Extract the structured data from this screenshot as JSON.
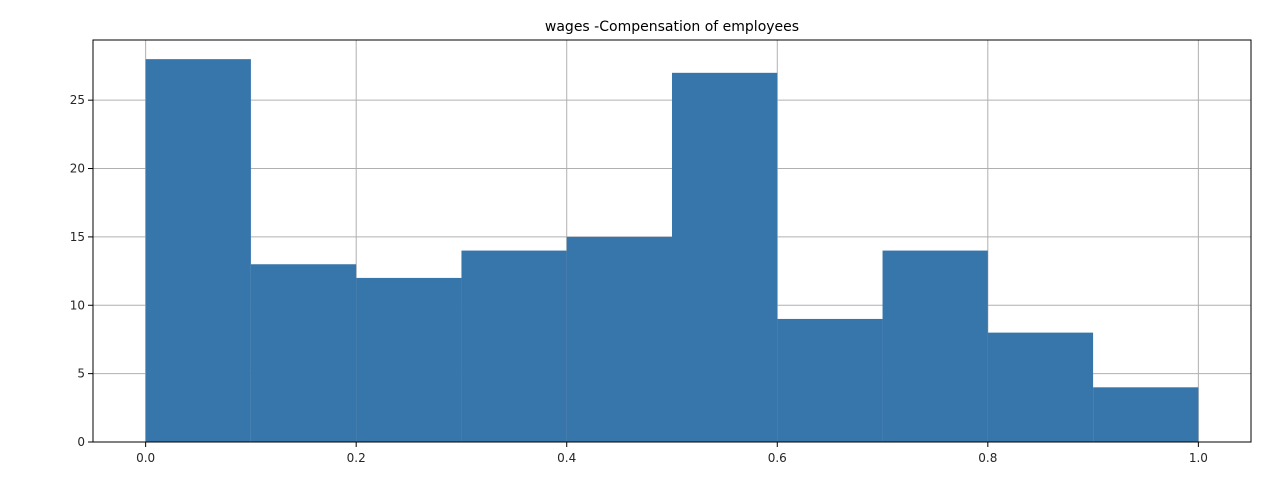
{
  "chart_data": {
    "type": "bar",
    "title": "wages -Compensation of employees",
    "xlabel": "",
    "ylabel": "",
    "bin_edges": [
      0.0,
      0.1,
      0.2,
      0.3,
      0.4,
      0.5,
      0.6,
      0.7,
      0.8,
      0.9,
      1.0
    ],
    "values": [
      28,
      13,
      12,
      14,
      15,
      27,
      9,
      14,
      8,
      4
    ],
    "xlim": [
      -0.05,
      1.05
    ],
    "ylim": [
      0,
      29.4
    ],
    "xticks": [
      "0.0",
      "0.2",
      "0.4",
      "0.6",
      "0.8",
      "1.0"
    ],
    "yticks": [
      "0",
      "5",
      "10",
      "15",
      "20",
      "25"
    ],
    "grid": true,
    "bar_color": "#3776ab"
  }
}
